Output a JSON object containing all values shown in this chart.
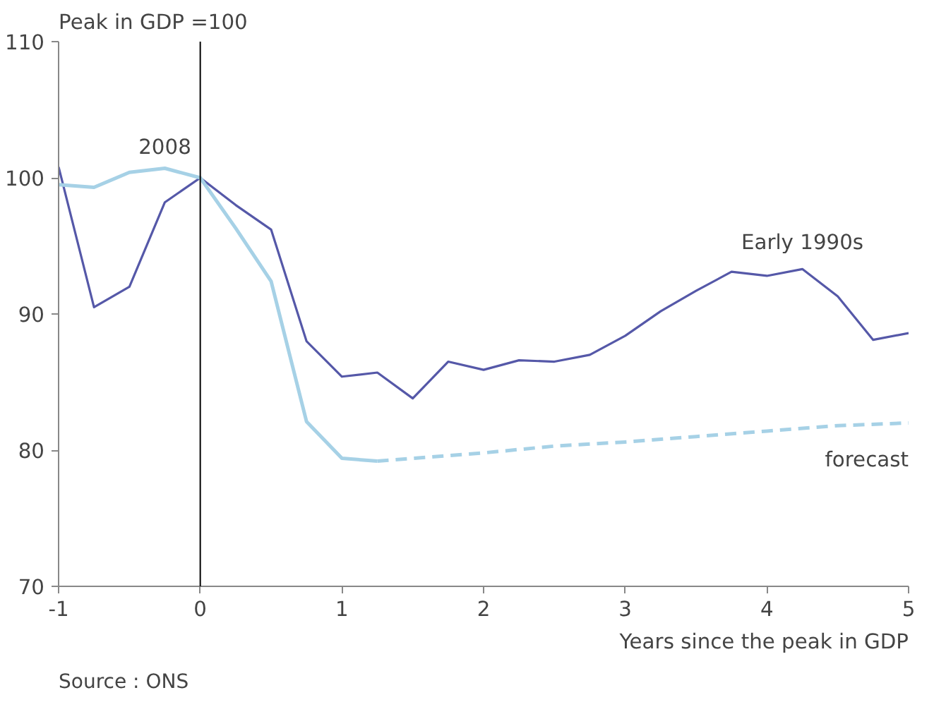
{
  "chart_data": {
    "type": "line",
    "ylabel": "Peak in GDP =100",
    "xlabel": "Years since the peak in GDP",
    "xlim": [
      -1,
      5
    ],
    "xticks": [
      -1,
      0,
      1,
      2,
      3,
      4,
      5
    ],
    "ylim": [
      70,
      110
    ],
    "yticks": [
      70,
      80,
      90,
      100,
      110
    ],
    "grid": false,
    "marker": "none",
    "series": [
      {
        "name": "Early 1990s",
        "color": "#5558a8",
        "line_style": "solid",
        "x": [
          -1,
          -0.75,
          -0.5,
          -0.25,
          0,
          0.25,
          0.5,
          0.75,
          1,
          1.25,
          1.5,
          1.75,
          2,
          2.25,
          2.5,
          2.75,
          3,
          3.25,
          3.5,
          3.75,
          4,
          4.25,
          4.5,
          4.75,
          5
        ],
        "values": [
          100.8,
          90.5,
          92.0,
          98.2,
          100,
          98.0,
          96.2,
          88.0,
          85.4,
          85.7,
          83.8,
          86.5,
          85.9,
          86.6,
          86.5,
          87.0,
          88.4,
          90.2,
          91.7,
          93.1,
          92.8,
          93.3,
          91.3,
          88.1,
          88.6
        ]
      },
      {
        "name": "2008",
        "color": "#a6d1e6",
        "line_style": "solid",
        "x": [
          -1,
          -0.75,
          -0.5,
          -0.25,
          0,
          0.25,
          0.5,
          0.75,
          1,
          1.25
        ],
        "values": [
          99.5,
          99.3,
          100.4,
          100.7,
          100,
          96.3,
          92.4,
          82.1,
          79.4,
          79.2
        ]
      },
      {
        "name": "forecast",
        "color": "#a6d1e6",
        "line_style": "dashed",
        "x": [
          1.25,
          1.5,
          2,
          2.5,
          3,
          3.5,
          4,
          4.5,
          5
        ],
        "values": [
          79.2,
          79.4,
          79.8,
          80.3,
          80.6,
          81.0,
          81.4,
          81.8,
          82.0
        ]
      }
    ],
    "ref_lines": [
      {
        "axis": "x",
        "value": 0,
        "color": "#000000"
      }
    ],
    "annotations": [
      "Source : ONS"
    ]
  }
}
